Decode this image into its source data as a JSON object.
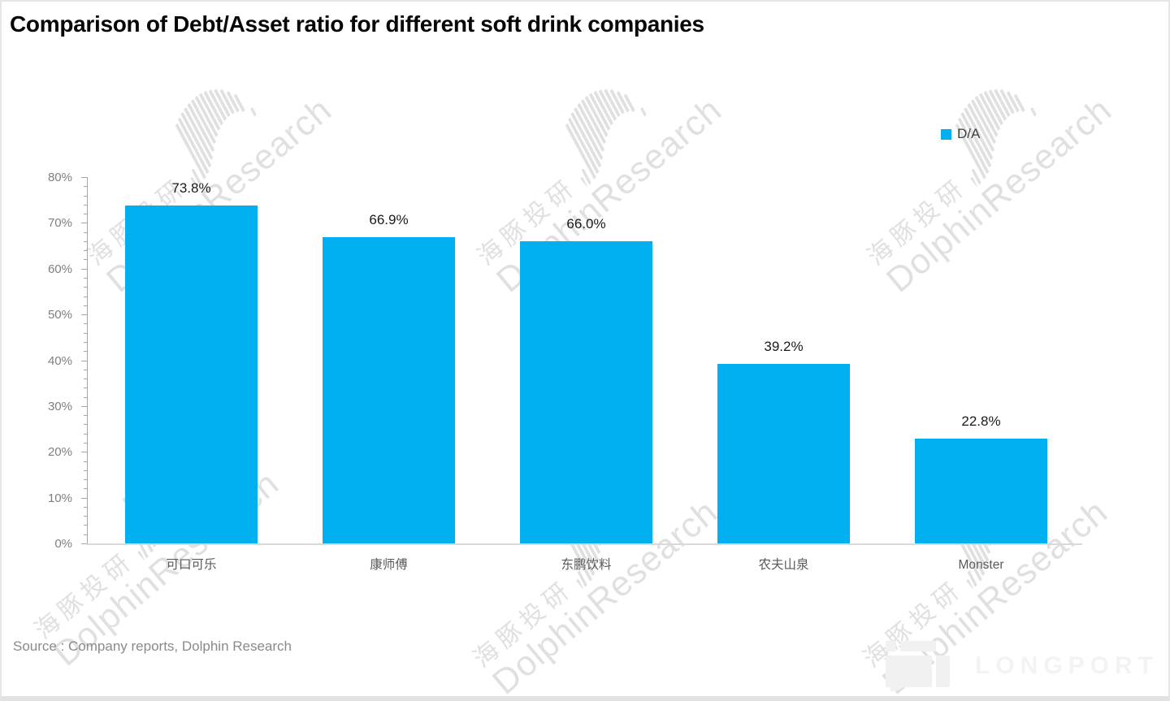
{
  "title": "Comparison of Debt/Asset ratio for different soft drink companies",
  "source_note": "Source : Company reports, Dolphin Research",
  "legend": {
    "label": "D/A"
  },
  "chart_data": {
    "type": "bar",
    "title": "Comparison of Debt/Asset ratio for different soft drink companies",
    "categories": [
      "可口可乐",
      "康师傅",
      "东鹏饮料",
      "农夫山泉",
      "Monster"
    ],
    "series": [
      {
        "name": "D/A",
        "values": [
          73.8,
          66.9,
          66.0,
          39.2,
          22.8
        ]
      }
    ],
    "value_labels": [
      "73.8%",
      "66.9%",
      "66.0%",
      "39.2%",
      "22.8%"
    ],
    "xlabel": "",
    "ylabel": "",
    "ylim": [
      0,
      80
    ],
    "ytick_step": 10,
    "ytick_minor_step": 2,
    "ytick_labels": [
      "0%",
      "10%",
      "20%",
      "30%",
      "40%",
      "50%",
      "60%",
      "70%",
      "80%"
    ],
    "grid": false,
    "legend_position": "top-right",
    "bar_color": "#00B0F0"
  },
  "colors": {
    "bar": "#00B0F0",
    "axis": "#a6a6a6",
    "baseline": "#d9d9d9",
    "tick_label": "#7f7f7f",
    "category_label": "#595959",
    "value_label": "#1a1a1a",
    "watermark": "#e0e0e0",
    "brand_faint": "#f3f3f3"
  },
  "watermark": {
    "line_cn": "海豚投研",
    "line_en": "DolphinResearch"
  },
  "branding": {
    "longport_text": "LONGPORT"
  }
}
